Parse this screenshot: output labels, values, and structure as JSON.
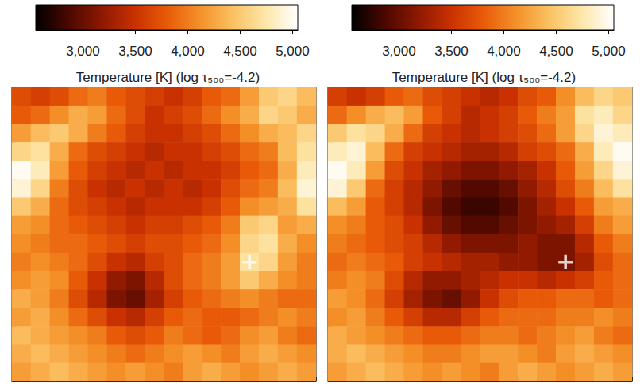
{
  "chart_data": [
    {
      "type": "heatmap",
      "title": "Temperature [K] (log τ₅₀₀=-4.2)",
      "tick_labels": false,
      "colorbar": {
        "range": [
          2550,
          5050
        ],
        "ticks": [
          3000,
          3500,
          4000,
          4500,
          5000
        ]
      },
      "cross": [
        12,
        9
      ],
      "cells": [
        [
          3700,
          3600,
          3700,
          3900,
          4000,
          3800,
          3700,
          3600,
          3500,
          3600,
          3800,
          3900,
          4200,
          4500,
          4600,
          4400
        ],
        [
          3800,
          3900,
          4100,
          4300,
          4200,
          3900,
          3700,
          3500,
          3600,
          3700,
          3900,
          4100,
          4300,
          4600,
          4500,
          4300
        ],
        [
          4200,
          4400,
          4500,
          4300,
          4000,
          3800,
          3600,
          3500,
          3500,
          3600,
          3700,
          3900,
          4100,
          4300,
          4400,
          4600
        ],
        [
          4600,
          4700,
          4300,
          3900,
          3700,
          3600,
          3500,
          3400,
          3500,
          3500,
          3600,
          3700,
          3900,
          4000,
          4400,
          4700
        ],
        [
          5000,
          4800,
          4200,
          3800,
          3600,
          3500,
          3400,
          3500,
          3400,
          3500,
          3500,
          3600,
          3800,
          3900,
          4300,
          4800
        ],
        [
          4900,
          4600,
          4000,
          3700,
          3500,
          3400,
          3500,
          3400,
          3500,
          3400,
          3500,
          3700,
          3900,
          4000,
          4400,
          4900
        ],
        [
          4500,
          4300,
          3900,
          3700,
          3600,
          3500,
          3400,
          3500,
          3500,
          3500,
          3600,
          3800,
          4100,
          4200,
          4300,
          4700
        ],
        [
          4200,
          4100,
          3900,
          3800,
          3700,
          3600,
          3500,
          3600,
          3600,
          3700,
          3800,
          4000,
          4500,
          4600,
          4200,
          4300
        ],
        [
          4100,
          4000,
          3900,
          3900,
          3800,
          3700,
          3600,
          3700,
          3700,
          3800,
          3900,
          4100,
          4600,
          4700,
          4300,
          4100
        ],
        [
          4000,
          4100,
          4000,
          3900,
          3700,
          3500,
          3400,
          3600,
          3700,
          3900,
          4000,
          4200,
          4700,
          4600,
          4200,
          4000
        ],
        [
          4100,
          4200,
          4100,
          3800,
          3500,
          3200,
          3100,
          3400,
          3700,
          3900,
          4000,
          4200,
          4500,
          4300,
          4100,
          4000
        ],
        [
          4300,
          4200,
          4000,
          3700,
          3400,
          3100,
          3000,
          3300,
          3600,
          3800,
          3900,
          4000,
          4100,
          4000,
          3900,
          3900
        ],
        [
          4200,
          4300,
          4100,
          3900,
          3700,
          3500,
          3400,
          3600,
          3800,
          3900,
          3800,
          3800,
          3900,
          4000,
          4100,
          4000
        ],
        [
          4400,
          4300,
          4200,
          4100,
          4000,
          3800,
          3700,
          3800,
          4000,
          3900,
          3800,
          3900,
          4100,
          4200,
          4000,
          3900
        ],
        [
          4300,
          4400,
          4300,
          4200,
          4100,
          4000,
          3900,
          4000,
          4100,
          4200,
          4100,
          4000,
          4200,
          4300,
          4200,
          4100
        ],
        [
          4200,
          4300,
          4400,
          4300,
          4200,
          4100,
          4200,
          4100,
          4000,
          4200,
          4300,
          4200,
          4100,
          4200,
          4300,
          4200
        ]
      ]
    },
    {
      "type": "heatmap",
      "title": "Temperature [K] (log τ₅₀₀=-4.2)",
      "tick_labels": false,
      "colorbar": {
        "range": [
          2550,
          5050
        ],
        "ticks": [
          3000,
          3500,
          4000,
          4500,
          5000
        ]
      },
      "cross": [
        12,
        9
      ],
      "cells": [
        [
          3600,
          3500,
          3600,
          3800,
          3900,
          3700,
          3600,
          3500,
          3400,
          3500,
          3700,
          3800,
          4100,
          4400,
          4600,
          4500
        ],
        [
          3900,
          4100,
          4300,
          4400,
          4200,
          3800,
          3600,
          3400,
          3500,
          3600,
          3800,
          4000,
          4200,
          4700,
          4800,
          4600
        ],
        [
          4500,
          4700,
          4600,
          4300,
          3900,
          3600,
          3500,
          3400,
          3500,
          3600,
          3700,
          3900,
          4200,
          4600,
          4900,
          4800
        ],
        [
          4800,
          4900,
          4400,
          3900,
          3600,
          3500,
          3400,
          3300,
          3300,
          3400,
          3600,
          3700,
          3900,
          4300,
          4800,
          5000
        ],
        [
          5000,
          4800,
          4200,
          3700,
          3500,
          3300,
          3200,
          3100,
          3100,
          3200,
          3300,
          3500,
          3800,
          4200,
          4600,
          4900
        ],
        [
          4900,
          4500,
          3900,
          3600,
          3400,
          3200,
          3000,
          2900,
          2900,
          3000,
          3200,
          3400,
          3700,
          4000,
          4400,
          4700
        ],
        [
          4400,
          4200,
          3800,
          3600,
          3400,
          3100,
          2900,
          2800,
          2800,
          2900,
          3100,
          3300,
          3500,
          3800,
          4200,
          4300
        ],
        [
          4100,
          4000,
          3800,
          3700,
          3500,
          3200,
          3000,
          2900,
          2900,
          3000,
          3100,
          3200,
          3300,
          3600,
          4000,
          4200
        ],
        [
          4000,
          3900,
          3800,
          3700,
          3600,
          3400,
          3200,
          3100,
          3100,
          3100,
          3200,
          3100,
          3100,
          3400,
          3800,
          4000
        ],
        [
          3900,
          4000,
          3900,
          3800,
          3600,
          3500,
          3400,
          3300,
          3300,
          3200,
          3200,
          3100,
          3100,
          3300,
          3700,
          3900
        ],
        [
          4000,
          4100,
          4000,
          3700,
          3400,
          3200,
          3200,
          3300,
          3400,
          3500,
          3500,
          3400,
          3500,
          3600,
          3800,
          3900
        ],
        [
          4200,
          4100,
          3900,
          3600,
          3300,
          3100,
          3000,
          3200,
          3500,
          3700,
          3800,
          3800,
          3900,
          3900,
          3800,
          3900
        ],
        [
          4100,
          4200,
          4000,
          3800,
          3600,
          3400,
          3400,
          3600,
          3800,
          3900,
          3900,
          3900,
          4000,
          4000,
          4100,
          4000
        ],
        [
          4300,
          4200,
          4100,
          4000,
          3900,
          3800,
          3800,
          3900,
          4000,
          4000,
          3900,
          4000,
          4100,
          4200,
          4000,
          3900
        ],
        [
          4300,
          4400,
          4300,
          4200,
          4100,
          4000,
          4000,
          4100,
          4200,
          4200,
          4100,
          4000,
          4200,
          4300,
          4200,
          4100
        ],
        [
          4200,
          4300,
          4400,
          4300,
          4200,
          4100,
          4200,
          4100,
          4000,
          4200,
          4300,
          4200,
          4100,
          4200,
          4300,
          4200
        ]
      ]
    }
  ]
}
